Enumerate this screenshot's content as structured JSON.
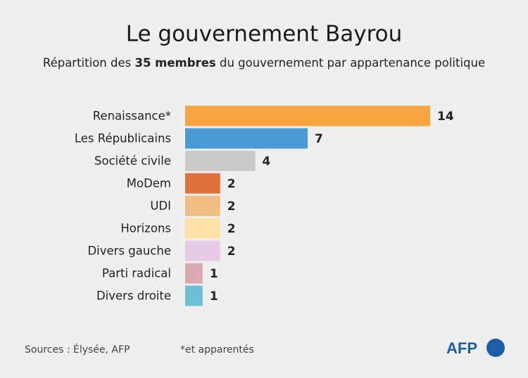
{
  "chart_data": {
    "type": "bar",
    "orientation": "horizontal",
    "title": "Le gouvernement Bayrou",
    "subtitle": [
      "Répartition des",
      "35 membres",
      "du gouvernement par appartenance politique"
    ],
    "categories": [
      "Renaissance*",
      "Les Républicains",
      "Société civile",
      "MoDem",
      "UDI",
      "Horizons",
      "Divers gauche",
      "Parti radical",
      "Divers droite"
    ],
    "values": [
      14,
      7,
      4,
      2,
      2,
      2,
      2,
      1,
      1
    ],
    "colors": [
      "#f5a441",
      "#4a9ad6",
      "#c9c9c9",
      "#e0703a",
      "#f2bd84",
      "#fde0a8",
      "#e6cbe6",
      "#d9aab4",
      "#6fbfd4"
    ],
    "source": "Sources : Élysée, AFP",
    "note": "*et apparentés",
    "logo": "AFP"
  }
}
